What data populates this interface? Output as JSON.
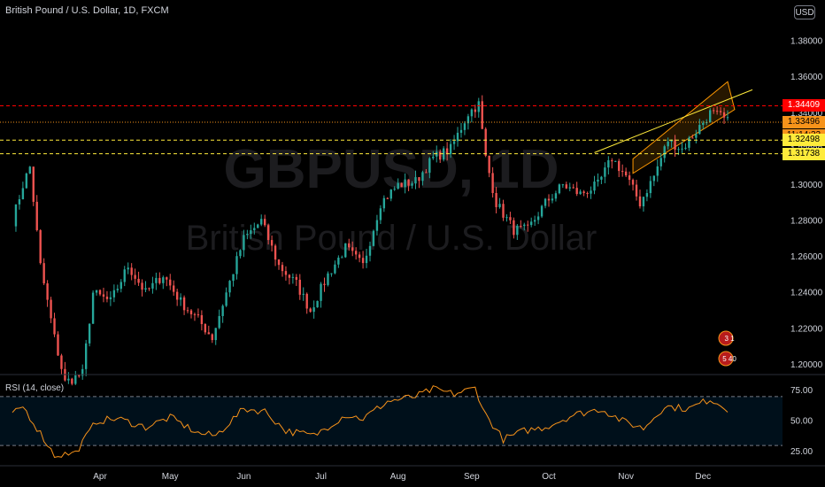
{
  "header": {
    "title": "British Pound / U.S. Dollar, 1D, FXCM",
    "currency": "USD"
  },
  "watermark": {
    "symbol": "GBPUSD, 1D",
    "name": "British Pound / U.S. Dollar"
  },
  "price_tags": {
    "red": {
      "text": "1.34409",
      "color": "#ff0000"
    },
    "orange": {
      "text": "1.33496",
      "color": "#f7931a"
    },
    "timer": {
      "text": "11:14:32",
      "color": "#f7931a"
    },
    "yellow1": {
      "text": "1.32498",
      "color": "#ffeb3b"
    },
    "yellow2": {
      "text": "1.31738",
      "color": "#ffeb3b"
    }
  },
  "rsi": {
    "title": "RSI (14, close)",
    "upper": 70,
    "lower": 30
  },
  "events": {
    "event1": "3 1",
    "event2": "5 40"
  },
  "chart_data": [
    {
      "type": "candlestick",
      "x_labels": [
        "Apr",
        "May",
        "Jun",
        "Jul",
        "Aug",
        "Sep",
        "Oct",
        "Nov",
        "Dec"
      ],
      "y_ticks": [
        "1.38000",
        "1.36000",
        "1.34000",
        "1.32000",
        "1.30000",
        "1.28000",
        "1.26000",
        "1.24000",
        "1.22000",
        "1.20000"
      ],
      "y_range": [
        1.195,
        1.4
      ],
      "anchors": [
        [
          0,
          1.28
        ],
        [
          3,
          1.3
        ],
        [
          5,
          1.31
        ],
        [
          8,
          1.255
        ],
        [
          12,
          1.215
        ],
        [
          15,
          1.19
        ],
        [
          20,
          1.195
        ],
        [
          23,
          1.24
        ],
        [
          28,
          1.235
        ],
        [
          33,
          1.255
        ],
        [
          38,
          1.24
        ],
        [
          43,
          1.25
        ],
        [
          48,
          1.235
        ],
        [
          53,
          1.225
        ],
        [
          57,
          1.215
        ],
        [
          61,
          1.24
        ],
        [
          66,
          1.27
        ],
        [
          71,
          1.28
        ],
        [
          76,
          1.255
        ],
        [
          81,
          1.245
        ],
        [
          85,
          1.23
        ],
        [
          90,
          1.25
        ],
        [
          95,
          1.265
        ],
        [
          100,
          1.255
        ],
        [
          105,
          1.29
        ],
        [
          110,
          1.3
        ],
        [
          115,
          1.302
        ],
        [
          120,
          1.315
        ],
        [
          125,
          1.32
        ],
        [
          130,
          1.34
        ],
        [
          133,
          1.345
        ],
        [
          135,
          1.315
        ],
        [
          138,
          1.29
        ],
        [
          143,
          1.275
        ],
        [
          147,
          1.275
        ],
        [
          152,
          1.29
        ],
        [
          157,
          1.3
        ],
        [
          162,
          1.295
        ],
        [
          167,
          1.3
        ],
        [
          171,
          1.315
        ],
        [
          175,
          1.305
        ],
        [
          179,
          1.29
        ],
        [
          183,
          1.305
        ],
        [
          187,
          1.325
        ],
        [
          191,
          1.32
        ],
        [
          195,
          1.33
        ],
        [
          199,
          1.34
        ],
        [
          202,
          1.338
        ],
        [
          204,
          1.335
        ]
      ],
      "rsi_anchors": [
        [
          0,
          55
        ],
        [
          3,
          62
        ],
        [
          8,
          40
        ],
        [
          12,
          22
        ],
        [
          18,
          24
        ],
        [
          24,
          50
        ],
        [
          30,
          52
        ],
        [
          38,
          45
        ],
        [
          45,
          53
        ],
        [
          53,
          40
        ],
        [
          58,
          38
        ],
        [
          66,
          60
        ],
        [
          72,
          58
        ],
        [
          78,
          42
        ],
        [
          86,
          38
        ],
        [
          95,
          55
        ],
        [
          100,
          52
        ],
        [
          107,
          66
        ],
        [
          115,
          70
        ],
        [
          120,
          76
        ],
        [
          126,
          72
        ],
        [
          132,
          77
        ],
        [
          135,
          55
        ],
        [
          140,
          35
        ],
        [
          146,
          42
        ],
        [
          152,
          45
        ],
        [
          160,
          55
        ],
        [
          168,
          60
        ],
        [
          174,
          50
        ],
        [
          180,
          44
        ],
        [
          186,
          62
        ],
        [
          193,
          60
        ],
        [
          199,
          68
        ],
        [
          204,
          60
        ]
      ]
    }
  ]
}
